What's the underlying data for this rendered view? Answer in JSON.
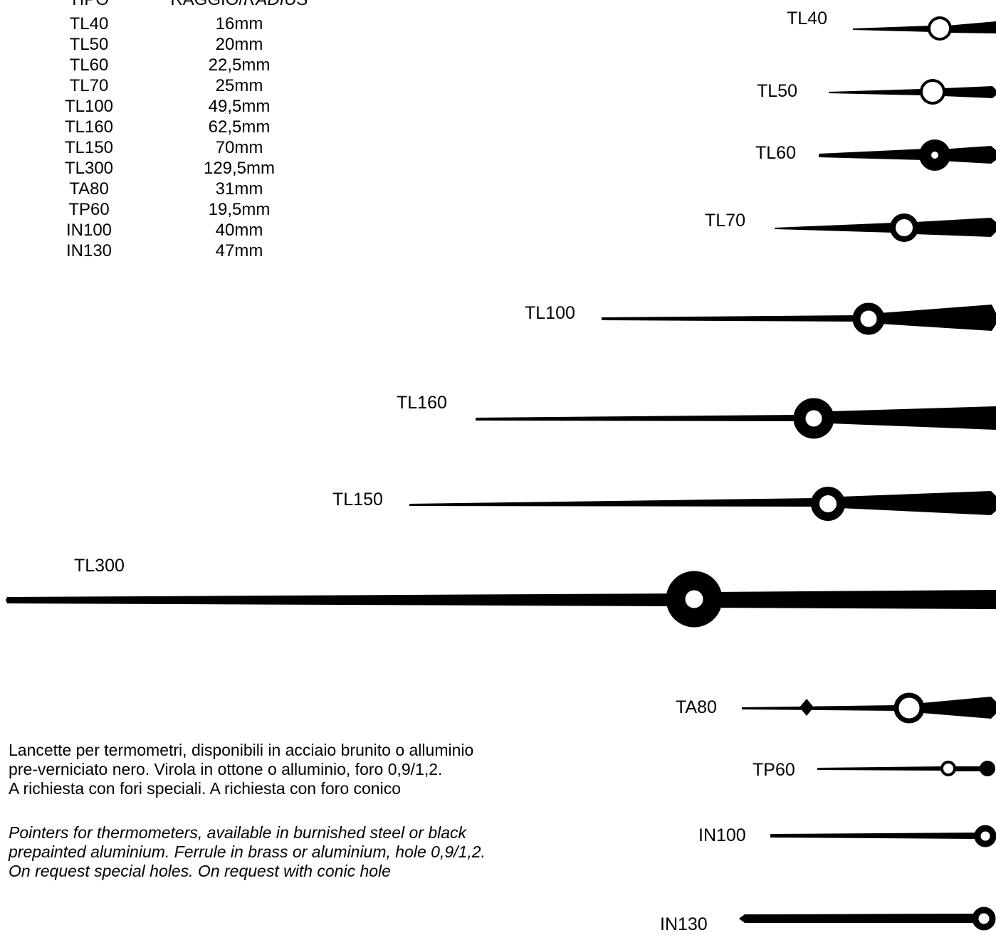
{
  "table": {
    "header": {
      "type": "TIPO",
      "radius_it": "RAGGIO/",
      "radius_en": "RADIUS"
    },
    "rows": [
      {
        "type": "TL40",
        "radius": "16mm"
      },
      {
        "type": "TL50",
        "radius": "20mm"
      },
      {
        "type": "TL60",
        "radius": "22,5mm"
      },
      {
        "type": "TL70",
        "radius": "25mm"
      },
      {
        "type": "TL100",
        "radius": "49,5mm"
      },
      {
        "type": "TL160",
        "radius": "62,5mm"
      },
      {
        "type": "TL150",
        "radius": "70mm"
      },
      {
        "type": "TL300",
        "radius": "129,5mm"
      },
      {
        "type": "TA80",
        "radius": "31mm"
      },
      {
        "type": "TP60",
        "radius": "19,5mm"
      },
      {
        "type": "IN100",
        "radius": "40mm"
      },
      {
        "type": "IN130",
        "radius": "47mm"
      }
    ]
  },
  "pointers": {
    "TL40": "TL40",
    "TL50": "TL50",
    "TL60": "TL60",
    "TL70": "TL70",
    "TL100": "TL100",
    "TL160": "TL160",
    "TL150": "TL150",
    "TL300": "TL300",
    "TA80": "TA80",
    "TP60": "TP60",
    "IN100": "IN100",
    "IN130": "IN130"
  },
  "description": {
    "it": [
      "Lancette per termometri, disponibili in acciaio brunito o alluminio",
      "pre-verniciato nero. Virola in ottone o alluminio, foro 0,9/1,2.",
      "A richiesta con fori speciali. A richiesta con foro conico"
    ],
    "en": [
      "Pointers for thermometers, available in burnished steel or black",
      "prepainted aluminium. Ferrule in brass or aluminium, hole 0,9/1,2.",
      "On request special holes. On request with conic hole"
    ]
  },
  "colors": {
    "ink": "#000000",
    "background": "#ffffff"
  }
}
